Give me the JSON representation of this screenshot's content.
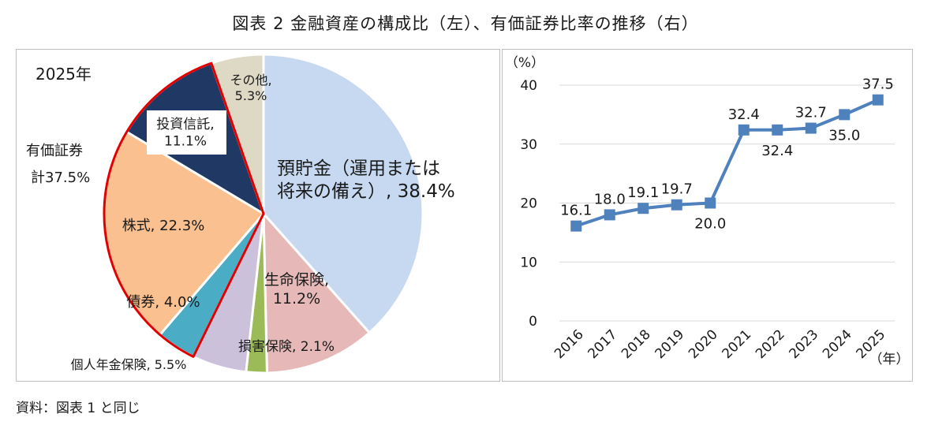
{
  "title": "図表 2 金融資産の構成比（左）、有価証券比率の推移（右）",
  "note": "資料：図表 1 と同じ",
  "chart_data": [
    {
      "type": "pie",
      "year_label": "2025年",
      "group_label_line1": "有価証券",
      "group_label_line2": "計37.5%",
      "slices": [
        {
          "label_lines": [
            "預貯金（運用または",
            "将来の備え）, 38.4%"
          ],
          "value": 38.4,
          "color": "#c6d9f1"
        },
        {
          "label_lines": [
            "生命保険,",
            "11.2%"
          ],
          "value": 11.2,
          "color": "#e6b9b8"
        },
        {
          "label_lines": [
            "損害保険, 2.1%"
          ],
          "value": 2.1,
          "color": "#9bbb59"
        },
        {
          "label_lines": [
            "個人年金保険, 5.5%"
          ],
          "value": 5.5,
          "color": "#ccc1da"
        },
        {
          "label_lines": [
            "債券, 4.0%"
          ],
          "value": 4.0,
          "color": "#4bacc6"
        },
        {
          "label_lines": [
            "株式, 22.3%"
          ],
          "value": 22.3,
          "color": "#fac090"
        },
        {
          "label_lines": [
            "投資信託,",
            "11.1%"
          ],
          "value": 11.1,
          "color": "#1f3864"
        },
        {
          "label_lines": [
            "その他,",
            "5.3%"
          ],
          "value": 5.3,
          "color": "#ddd9c4"
        }
      ]
    },
    {
      "type": "line",
      "ylabel": "（%）",
      "xlabel": "（年）",
      "ylim": [
        0,
        40
      ],
      "yticks": [
        "0",
        "10",
        "20",
        "30",
        "40"
      ],
      "categories": [
        "2016",
        "2017",
        "2018",
        "2019",
        "2020",
        "2021",
        "2022",
        "2023",
        "2024",
        "2025"
      ],
      "values": [
        16.1,
        18.0,
        19.1,
        19.7,
        20.0,
        32.4,
        32.4,
        32.7,
        35.0,
        37.5
      ],
      "value_labels": [
        "16.1",
        "18.0",
        "19.1",
        "19.7",
        "20.0",
        "32.4",
        "32.4",
        "32.7",
        "35.0",
        "37.5"
      ],
      "color": "#4f81bd",
      "grid": true
    }
  ]
}
